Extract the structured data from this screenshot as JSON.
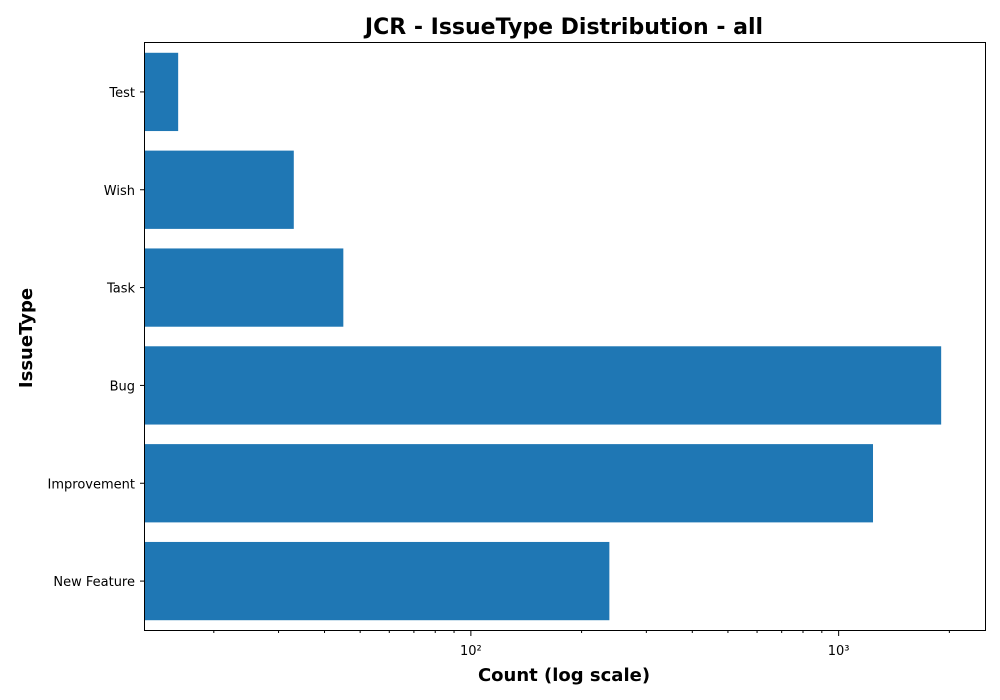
{
  "chart_data": {
    "type": "bar",
    "orientation": "horizontal",
    "title": "JCR - IssueType Distribution - all",
    "xlabel": "Count (log scale)",
    "ylabel": "IssueType",
    "xscale": "log",
    "xlim": [
      13,
      2500
    ],
    "categories": [
      "Test",
      "Wish",
      "Task",
      "Bug",
      "Improvement",
      "New Feature"
    ],
    "values": [
      16,
      33,
      45,
      1900,
      1240,
      238
    ],
    "x_major_ticks": [
      100,
      1000
    ],
    "x_major_tick_labels": [
      "10²",
      "10³"
    ],
    "x_minor_ticks": [
      20,
      30,
      40,
      50,
      60,
      70,
      80,
      90,
      200,
      300,
      400,
      500,
      600,
      700,
      800,
      900,
      2000
    ],
    "bar_color": "#1f77b4",
    "grid": false
  }
}
